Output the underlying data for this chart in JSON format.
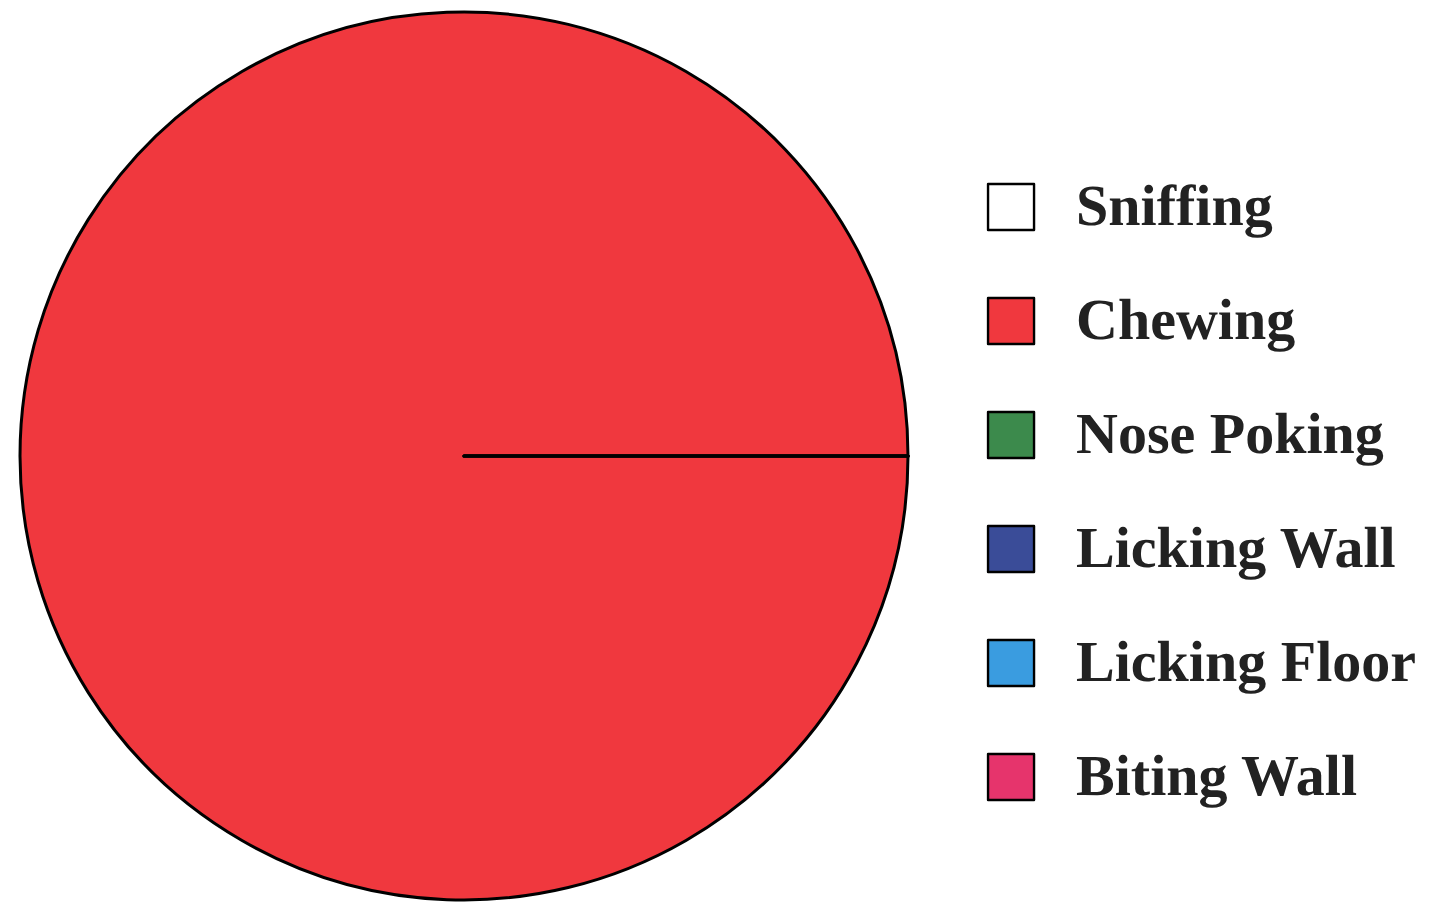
{
  "chart_data": {
    "type": "pie",
    "categories": [
      "Sniffing",
      "Chewing",
      "Nose Poking",
      "Licking Wall",
      "Licking Floor",
      "Biting Wall"
    ],
    "values": [
      0,
      100,
      0,
      0,
      0,
      0
    ],
    "colors": [
      "#ffffff",
      "#f0383e",
      "#3c8a4c",
      "#3a4c98",
      "#3a9ce0",
      "#e6346c"
    ],
    "legend": "right"
  }
}
